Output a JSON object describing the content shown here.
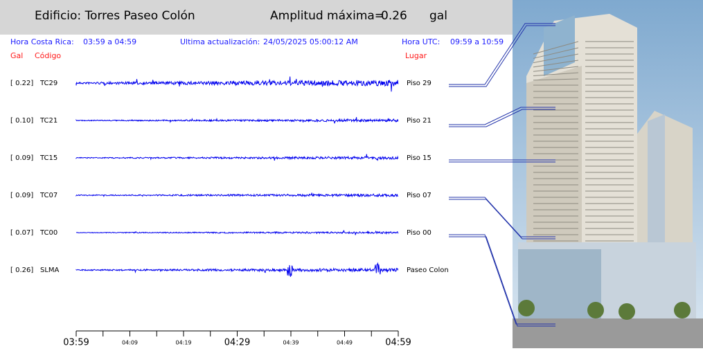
{
  "header": {
    "building": "Edificio: Torres Paseo Colón",
    "amplitude_label": "Amplitud máxima=",
    "amplitude": "0.26",
    "unit": "gal"
  },
  "info": {
    "local_label": "Hora Costa Rica:",
    "local_range": "03:59 a 04:59",
    "update_label": "Ultima actualización:",
    "update_value": "24/05/2025 05:00:12 AM",
    "utc_label": "Hora UTC:",
    "utc_range": "09:59 a 10:59"
  },
  "columns": {
    "gal": "Gal",
    "code": "Código",
    "place": "Lugar"
  },
  "stations": [
    {
      "gal": "[   0.22]",
      "code": "TC29",
      "place": "Piso 29"
    },
    {
      "gal": "[   0.10]",
      "code": "TC21",
      "place": "Piso 21"
    },
    {
      "gal": "[   0.09]",
      "code": "TC15",
      "place": "Piso 15"
    },
    {
      "gal": "[   0.09]",
      "code": "TC07",
      "place": "Piso 07"
    },
    {
      "gal": "[   0.07]",
      "code": "TC00",
      "place": "Piso 00"
    },
    {
      "gal": "[   0.26]",
      "code": "SLMA",
      "place": "Paseo Colon"
    }
  ],
  "time_axis": [
    "03:59",
    "04:09",
    "04:19",
    "04:29",
    "04:39",
    "04:49",
    "04:59"
  ]
}
